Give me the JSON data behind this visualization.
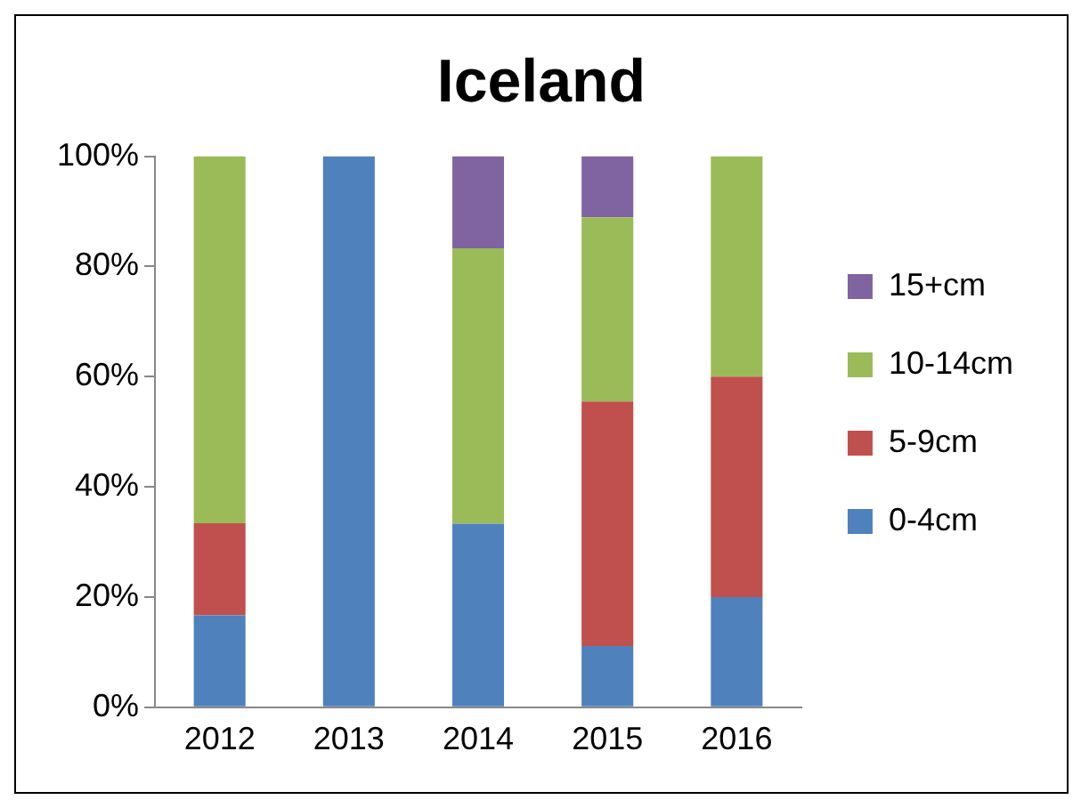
{
  "chart_data": {
    "type": "bar",
    "title": "Iceland",
    "stacked": true,
    "legend": "right",
    "categories": [
      "2012",
      "2013",
      "2014",
      "2015",
      "2016"
    ],
    "series": [
      {
        "name": "0-4cm",
        "color": "#4f81bd",
        "values": [
          16.7,
          100,
          33.3,
          11.1,
          20
        ]
      },
      {
        "name": "5-9cm",
        "color": "#c0504d",
        "values": [
          16.7,
          0,
          0,
          44.4,
          40
        ]
      },
      {
        "name": "10-14cm",
        "color": "#9bbb59",
        "values": [
          66.6,
          0,
          50,
          33.4,
          40
        ]
      },
      {
        "name": "15+cm",
        "color": "#8064a2",
        "values": [
          0,
          0,
          16.7,
          11.1,
          0
        ]
      }
    ],
    "ylim": [
      0,
      100
    ],
    "yticks": [
      {
        "value": 0,
        "label": "0%"
      },
      {
        "value": 20,
        "label": "20%"
      },
      {
        "value": 40,
        "label": "40%"
      },
      {
        "value": 60,
        "label": "60%"
      },
      {
        "value": 80,
        "label": "80%"
      },
      {
        "value": 100,
        "label": "100%"
      }
    ],
    "grid": false
  }
}
